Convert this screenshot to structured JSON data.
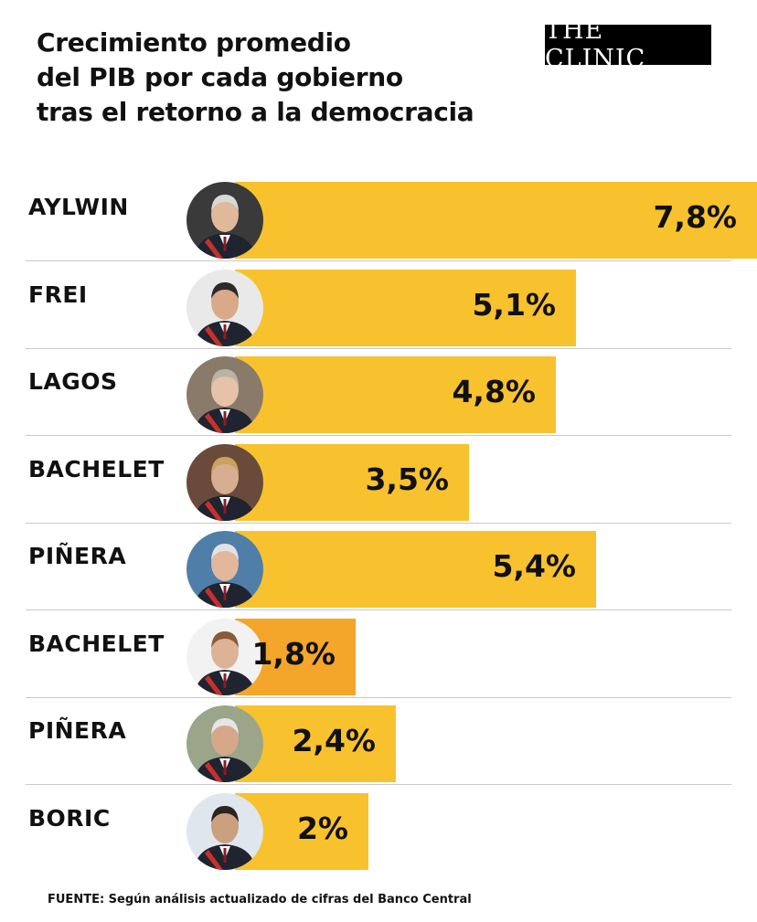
{
  "header": {
    "title_lines": [
      "Crecimiento promedio",
      "del PIB por cada gobierno",
      "tras el retorno a la democracia"
    ],
    "logo_text": "THE CLINIC"
  },
  "colors": {
    "bar": "#f8c22e",
    "bar_highlight": "#f4a62a"
  },
  "chart_data": {
    "type": "bar",
    "orientation": "horizontal",
    "title": "Crecimiento promedio del PIB por cada gobierno tras el retorno a la democracia",
    "categories": [
      "AYLWIN",
      "FREI",
      "LAGOS",
      "BACHELET",
      "PIÑERA",
      "BACHELET",
      "PIÑERA",
      "BORIC"
    ],
    "values": [
      7.8,
      5.1,
      4.8,
      3.5,
      5.4,
      1.8,
      2.4,
      2.0
    ],
    "value_labels": [
      "7,8%",
      "5,1%",
      "4,8%",
      "3,5%",
      "5,4%",
      "1,8%",
      "2,4%",
      "2%"
    ],
    "highlighted_index": 5,
    "unit": "%",
    "xlim": [
      0,
      7.8
    ]
  },
  "footer": {
    "source": "FUENTE: Según análisis actualizado de cifras del Banco Central"
  }
}
